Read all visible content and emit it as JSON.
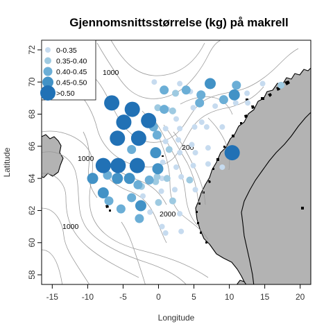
{
  "title": "Gjennomsnittsstørrelse (kg) på makrell",
  "xlabel": "Longitude",
  "ylabel": "Latitude",
  "colors": {
    "c1": "#c6dbef",
    "c2": "#9ecae1",
    "c3": "#6baed6",
    "c4": "#4292c6",
    "c5": "#2171b5",
    "land": "#b3b3b3",
    "contour": "#9a9a9a"
  },
  "legend": {
    "placement": "top-left",
    "items": [
      {
        "label": "0-0.35",
        "color": "#c6dbef"
      },
      {
        "label": "0.35-0.40",
        "color": "#9ecae1"
      },
      {
        "label": "0.40-0.45",
        "color": "#6baed6"
      },
      {
        "label": "0.45-0.50",
        "color": "#4292c6"
      },
      {
        "label": ">0.50",
        "color": "#2171b5"
      }
    ]
  },
  "chart_data": {
    "type": "scatter",
    "title": "Gjennomsnittsstørrelse (kg) på makrell",
    "xlabel": "Longitude",
    "ylabel": "Latitude",
    "xlim": [
      -16.5,
      21.5
    ],
    "ylim": [
      57.4,
      72.6
    ],
    "xticks": [
      -15,
      -10,
      -5,
      0,
      5,
      10,
      15,
      20
    ],
    "yticks": [
      58,
      60,
      62,
      64,
      66,
      68,
      70,
      72
    ],
    "grid": false,
    "series": [
      {
        "name": "0-0.35",
        "category": 1,
        "color": "#c6dbef",
        "points": [
          [
            -0.6,
            70.0
          ],
          [
            1.3,
            68.3
          ],
          [
            2.5,
            67.7
          ],
          [
            3.0,
            69.9
          ],
          [
            4.5,
            69.4
          ],
          [
            4.9,
            68.4
          ],
          [
            6.1,
            67.5
          ],
          [
            8.0,
            68.5
          ],
          [
            10.9,
            68.7
          ],
          [
            12.5,
            69.3
          ],
          [
            14.7,
            69.9
          ],
          [
            12.6,
            68.7
          ],
          [
            1.0,
            67.1
          ],
          [
            3.0,
            67.1
          ],
          [
            5.1,
            67.2
          ],
          [
            6.8,
            67.2
          ],
          [
            9.0,
            67.2
          ],
          [
            2.8,
            66.4
          ],
          [
            1.0,
            66.3
          ],
          [
            4.7,
            66.1
          ],
          [
            0.6,
            65.0
          ],
          [
            3.0,
            65.6
          ],
          [
            5.2,
            65.6
          ],
          [
            7.0,
            65.9
          ],
          [
            2.5,
            64.7
          ],
          [
            4.9,
            64.8
          ],
          [
            7.0,
            64.9
          ],
          [
            3.2,
            64.1
          ],
          [
            0.5,
            64.0
          ],
          [
            5.2,
            63.3
          ],
          [
            0.4,
            63.2
          ],
          [
            2.3,
            63.3
          ],
          [
            -2.2,
            62.9
          ],
          [
            -1.2,
            61.9
          ],
          [
            3.0,
            61.8
          ],
          [
            0.5,
            61.0
          ],
          [
            3.2,
            60.7
          ],
          [
            1.0,
            60.6
          ],
          [
            -0.4,
            64.6
          ],
          [
            9.0,
            64.7
          ],
          [
            -3.7,
            64.0
          ]
        ]
      },
      {
        "name": "0.35-0.40",
        "category": 2,
        "color": "#9ecae1",
        "points": [
          [
            2.4,
            69.3
          ],
          [
            2.0,
            68.2
          ],
          [
            -0.1,
            68.4
          ],
          [
            1.5,
            65.8
          ],
          [
            4.4,
            63.9
          ],
          [
            1.2,
            64.0
          ],
          [
            -2.4,
            63.5
          ],
          [
            -0.4,
            63.8
          ],
          [
            0.0,
            62.5
          ],
          [
            2.0,
            62.6
          ],
          [
            -0.2,
            64.1
          ],
          [
            17.3,
            69.8
          ]
        ]
      },
      {
        "name": "0.40-0.45",
        "category": 3,
        "color": "#6baed6",
        "points": [
          [
            0.8,
            69.5
          ],
          [
            3.9,
            69.5
          ],
          [
            5.8,
            68.7
          ],
          [
            6.0,
            69.2
          ],
          [
            9.2,
            68.9
          ],
          [
            11.0,
            69.8
          ],
          [
            0.8,
            68.3
          ],
          [
            -0.7,
            67.2
          ],
          [
            -0.2,
            66.7
          ],
          [
            -3.8,
            65.8
          ],
          [
            -2.9,
            63.6
          ],
          [
            -3.8,
            62.8
          ],
          [
            -7.2,
            64.2
          ],
          [
            -7.0,
            62.6
          ],
          [
            -5.3,
            62.1
          ],
          [
            -2.7,
            61.5
          ],
          [
            -1.3,
            63.9
          ],
          [
            -5.9,
            64.9
          ]
        ]
      },
      {
        "name": "0.45-0.50",
        "category": 4,
        "color": "#4292c6",
        "points": [
          [
            7.3,
            69.9
          ],
          [
            10.7,
            69.2
          ],
          [
            -0.4,
            65.6
          ],
          [
            -9.3,
            64.0
          ],
          [
            -4.1,
            64.0
          ],
          [
            -5.8,
            64.0
          ],
          [
            -7.8,
            63.1
          ],
          [
            -0.1,
            64.6
          ],
          [
            -2.5,
            62.3
          ]
        ]
      },
      {
        "name": ">0.50",
        "category": 5,
        "color": "#2171b5",
        "points": [
          [
            -6.6,
            68.7
          ],
          [
            -3.7,
            68.3
          ],
          [
            -4.9,
            67.5
          ],
          [
            -1.4,
            67.6
          ],
          [
            -2.8,
            66.5
          ],
          [
            -5.8,
            66.5
          ],
          [
            -7.8,
            64.8
          ],
          [
            -3.0,
            64.8
          ],
          [
            10.4,
            65.6
          ],
          [
            -5.7,
            64.8
          ]
        ]
      }
    ]
  },
  "map": {
    "contour_labels": [
      "1000",
      "1000",
      "1000",
      "200",
      "2000"
    ]
  }
}
